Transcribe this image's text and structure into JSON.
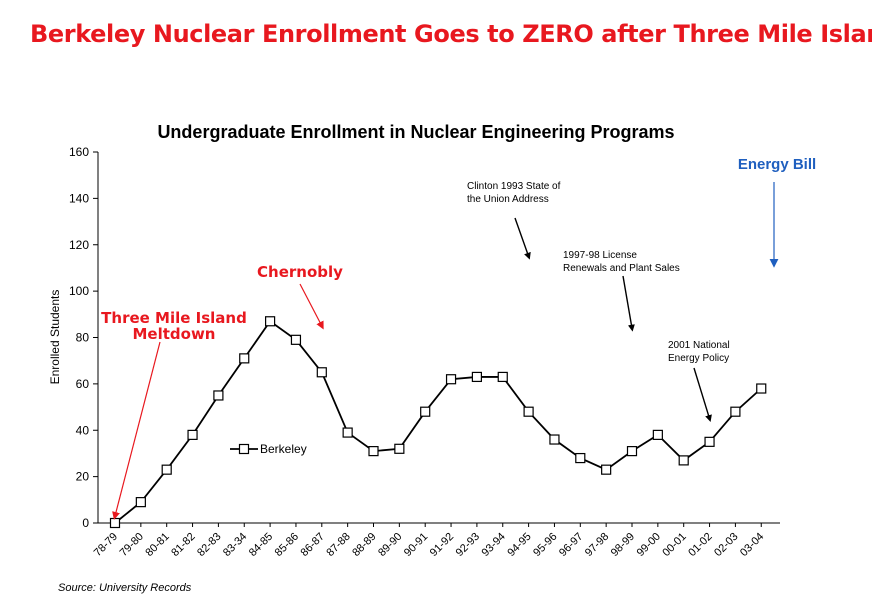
{
  "headline": "Berkeley Nuclear Enrollment  Goes to ZERO after Three Mile Island",
  "source": "Source: University Records",
  "chart_data": {
    "type": "line",
    "title": "Undergraduate Enrollment in Nuclear Engineering Programs",
    "ylabel": "Enrolled Students",
    "xlabel": "",
    "ylim": [
      0,
      160
    ],
    "yticks": [
      0,
      20,
      40,
      60,
      80,
      100,
      120,
      140,
      160
    ],
    "grid": false,
    "legend_position": "left-middle",
    "categories": [
      "78-79",
      "79-80",
      "80-81",
      "81-82",
      "82-83",
      "83-34",
      "84-85",
      "85-86",
      "86-87",
      "87-88",
      "88-89",
      "89-90",
      "90-91",
      "91-92",
      "92-93",
      "93-94",
      "94-95",
      "95-96",
      "96-97",
      "97-98",
      "98-99",
      "99-00",
      "00-01",
      "01-02",
      "02-03",
      "03-04"
    ],
    "series": [
      {
        "name": "Berkeley",
        "marker": "square",
        "values": [
          0,
          9,
          23,
          38,
          55,
          71,
          87,
          79,
          65,
          39,
          31,
          32,
          48,
          62,
          63,
          63,
          48,
          36,
          28,
          23,
          31,
          38,
          27,
          35,
          48,
          58
        ]
      }
    ],
    "annotations": [
      {
        "id": "tmi",
        "text": [
          "Three Mile Island",
          "Meltdown"
        ],
        "color": "#e8181f",
        "style": "bold-red",
        "points_to": {
          "category": "78-79",
          "y": 3
        }
      },
      {
        "id": "chernobyl",
        "text": [
          "Chernobly"
        ],
        "color": "#e8181f",
        "style": "bold-red",
        "points_to": {
          "category": "86-87",
          "y": 85
        }
      },
      {
        "id": "clinton",
        "text": [
          "Clinton 1993 State of",
          "the Union Address"
        ],
        "color": "#000000",
        "style": "small",
        "points_to": {
          "category": "94-95",
          "y": 115
        }
      },
      {
        "id": "license",
        "text": [
          "1997-98 License",
          "Renewals and Plant Sales"
        ],
        "color": "#000000",
        "style": "small",
        "points_to": {
          "category": "98-99",
          "y": 84
        }
      },
      {
        "id": "nep",
        "text": [
          "2001 National",
          "Energy Policy"
        ],
        "color": "#000000",
        "style": "small",
        "points_to": {
          "category": "01-02",
          "y": 45
        }
      },
      {
        "id": "energybill",
        "text": [
          "Energy Bill"
        ],
        "color": "#1f5fbf",
        "style": "bold-blue",
        "points_to": {
          "category": "03-04",
          "y": 112
        }
      }
    ]
  }
}
